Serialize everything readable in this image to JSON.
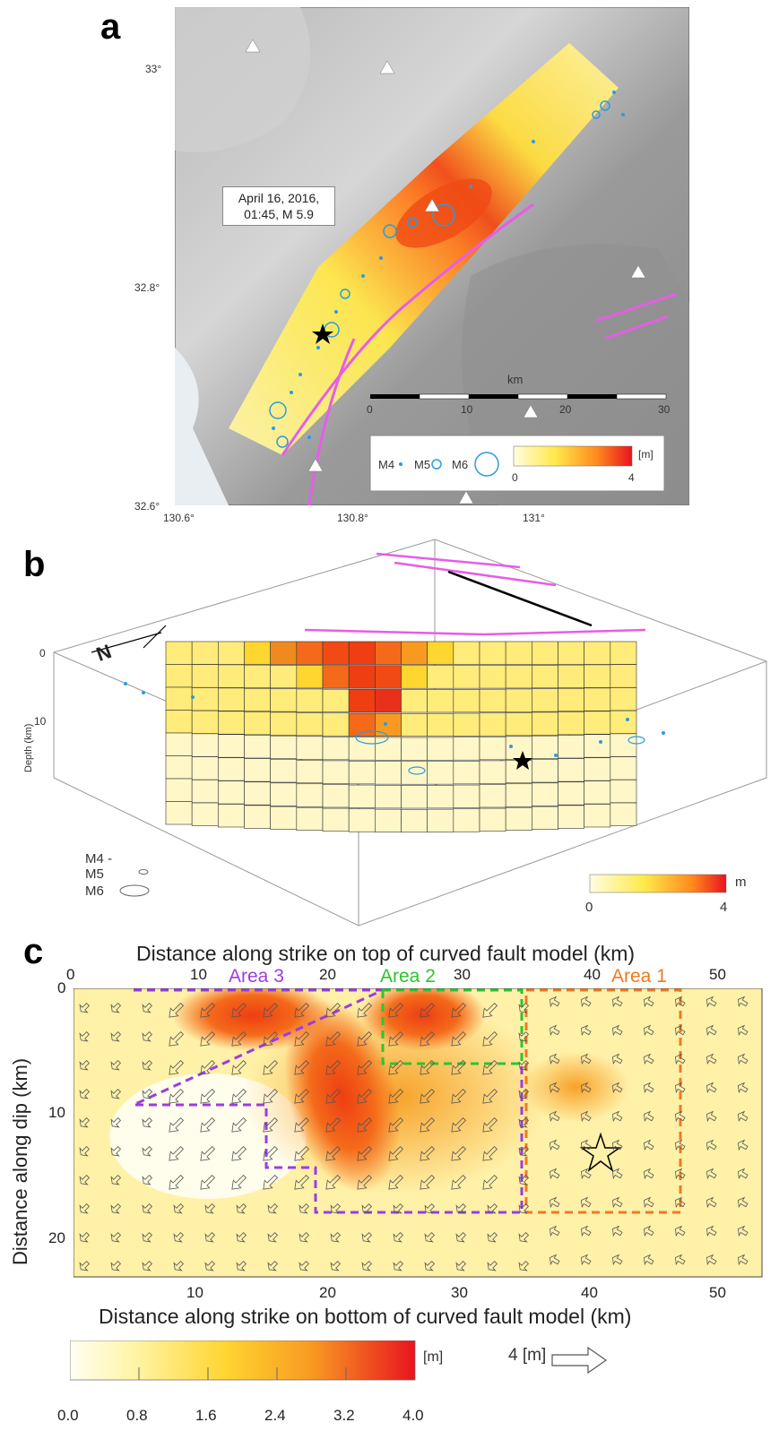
{
  "panels": {
    "a": {
      "label": "a",
      "lat_ticks": [
        "33°",
        "32.8°",
        "32.6°"
      ],
      "lon_ticks": [
        "130.6°",
        "130.8°",
        "131°"
      ],
      "callout": [
        "April 16, 2016,",
        "01:45, M 5.9"
      ],
      "scale": {
        "unit": "km",
        "ticks": [
          "0",
          "10",
          "20",
          "30"
        ]
      },
      "legend": {
        "mag_labels": [
          "M4",
          "M5",
          "M6"
        ],
        "colorbar_unit": "[m]",
        "colorbar_min": "0",
        "colorbar_max": "4"
      },
      "colors": {
        "fault_trace": "#e85ce8",
        "aftershock": "#2b9be0",
        "epicenter": "#000000"
      }
    },
    "b": {
      "label": "b",
      "depth_label": "Depth (km)",
      "depth_ticks": [
        "0",
        "10"
      ],
      "north": "N",
      "legend_mags": [
        "M4 -",
        "M5",
        "M6"
      ],
      "colorbar_unit": "m",
      "colorbar_min": "0",
      "colorbar_max": "4"
    },
    "c": {
      "label": "c",
      "top_title": "Distance along strike on top of curved fault model  (km)",
      "top_ticks": [
        "0",
        "10",
        "20",
        "30",
        "40",
        "50"
      ],
      "bottom_title": "Distance along strike on bottom of curved fault model (km)",
      "bottom_ticks": [
        "10",
        "20",
        "30",
        "40",
        "50"
      ],
      "y_title": "Distance along dip (km)",
      "y_ticks": [
        "0",
        "10",
        "20"
      ],
      "areas": [
        {
          "name": "Area 3",
          "color": "#9a3de0"
        },
        {
          "name": "Area 2",
          "color": "#2ec42e"
        },
        {
          "name": "Area 1",
          "color": "#f07a1e"
        }
      ],
      "colorbar_ticks": [
        "0.0",
        "0.8",
        "1.6",
        "2.4",
        "3.2",
        "4.0"
      ],
      "colorbar_unit": "[m]",
      "vector_scale": "4 [m]"
    }
  }
}
